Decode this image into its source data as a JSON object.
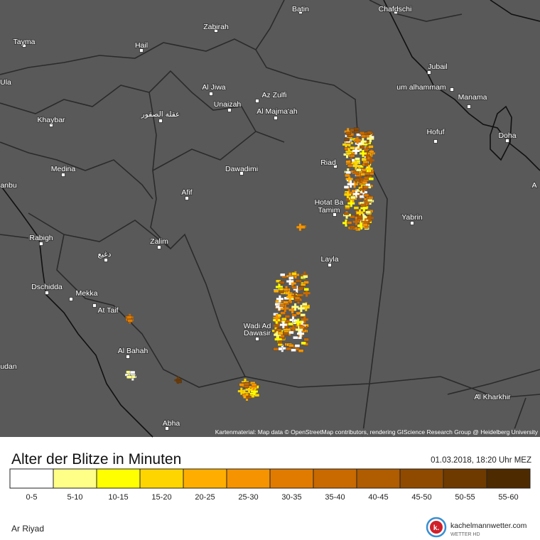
{
  "map": {
    "cities": [
      {
        "name": "Batin"
      },
      {
        "name": "Chafdschi"
      },
      {
        "name": "Zabirah"
      },
      {
        "name": "Tayma"
      },
      {
        "name": "Hail"
      },
      {
        "name": "Jubail"
      },
      {
        "name": "Ula"
      },
      {
        "name": "Al Jiwa"
      },
      {
        "name": "Az Zulfi"
      },
      {
        "name": "um alhammam"
      },
      {
        "name": "Manama"
      },
      {
        "name": "Unaizah"
      },
      {
        "name": "Al Majma'ah"
      },
      {
        "name": "عقلة الصقور"
      },
      {
        "name": "Khaybar"
      },
      {
        "name": "Hofuf"
      },
      {
        "name": "Doha"
      },
      {
        "name": "Riad"
      },
      {
        "name": "Medina"
      },
      {
        "name": "Dawadimi"
      },
      {
        "name": "anbu"
      },
      {
        "name": "Afif"
      },
      {
        "name": "Hotat Ba"
      },
      {
        "name": "Tamim"
      },
      {
        "name": "Yabrin"
      },
      {
        "name": "Rabigh"
      },
      {
        "name": "Zalim"
      },
      {
        "name": "دغيع"
      },
      {
        "name": "Layla"
      },
      {
        "name": "Dschidda"
      },
      {
        "name": "Mekka"
      },
      {
        "name": "At Taif"
      },
      {
        "name": "Wadi Ad"
      },
      {
        "name": "Dawasir"
      },
      {
        "name": "Al Bahah"
      },
      {
        "name": "udan"
      },
      {
        "name": "Al Kharkhir"
      },
      {
        "name": "Abha"
      },
      {
        "name": "A"
      }
    ],
    "attribution": "Kartenmaterial: Map data © OpenStreetMap contributors, rendering GIScience Research Group @ Heidelberg University"
  },
  "legend": {
    "title": "Alter der Blitze in Minuten",
    "timestamp": "01.03.2018, 18:20 Uhr MEZ",
    "bins": [
      {
        "label": "0-5",
        "color": "#ffffff"
      },
      {
        "label": "5-10",
        "color": "#ffff88"
      },
      {
        "label": "10-15",
        "color": "#ffff00"
      },
      {
        "label": "15-20",
        "color": "#ffd500"
      },
      {
        "label": "20-25",
        "color": "#ffae00"
      },
      {
        "label": "25-30",
        "color": "#f59300"
      },
      {
        "label": "30-35",
        "color": "#e07b00"
      },
      {
        "label": "35-40",
        "color": "#c86a00"
      },
      {
        "label": "40-45",
        "color": "#b05c00"
      },
      {
        "label": "45-50",
        "color": "#8f4a00"
      },
      {
        "label": "50-55",
        "color": "#6e3a00"
      },
      {
        "label": "55-60",
        "color": "#4e2a00"
      }
    ]
  },
  "footer": {
    "location": "Ar Riyad",
    "brand": "kachelmannwetter.com",
    "brand_sub": "WETTER HD",
    "logo": "k."
  }
}
